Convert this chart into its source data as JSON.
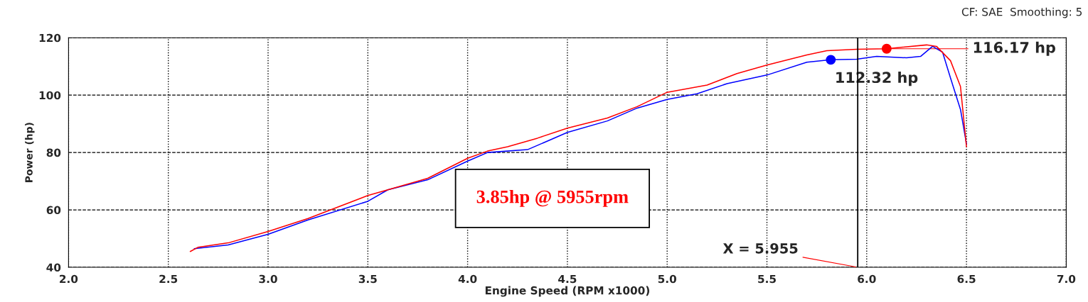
{
  "chart_data": {
    "type": "line",
    "xlabel": "Engine Speed (RPM x1000)",
    "ylabel": "Power (hp)",
    "xlim": [
      2.0,
      7.0
    ],
    "xticks": [
      {
        "value": 2.0,
        "label": "2.0"
      },
      {
        "value": 2.5,
        "label": "2.5"
      },
      {
        "value": 3.0,
        "label": "3.0"
      },
      {
        "value": 3.5,
        "label": "3.5"
      },
      {
        "value": 4.0,
        "label": "4.0"
      },
      {
        "value": 4.5,
        "label": "4.5"
      },
      {
        "value": 5.0,
        "label": "5.0"
      },
      {
        "value": 5.5,
        "label": "5.5"
      },
      {
        "value": 6.0,
        "label": "6.0"
      },
      {
        "value": 6.5,
        "label": "6.5"
      },
      {
        "value": 7.0,
        "label": "7.0"
      }
    ],
    "ylim": [
      40,
      120
    ],
    "yticks": [
      40,
      60,
      80,
      100,
      120
    ],
    "grid": true,
    "line_style": "solid",
    "series": [
      {
        "color": "#0000ff",
        "x": [
          2.63,
          2.8,
          3.0,
          3.2,
          3.5,
          3.6,
          3.8,
          4.0,
          4.1,
          4.3,
          4.4,
          4.5,
          4.7,
          4.85,
          5.0,
          5.15,
          5.3,
          5.5,
          5.7,
          5.82,
          5.95,
          6.05,
          6.2,
          6.27,
          6.33,
          6.38,
          6.42,
          6.47,
          6.5
        ],
        "values": [
          46.5,
          47.8,
          51.5,
          56.5,
          63,
          67,
          70.5,
          77,
          80,
          81,
          84,
          87,
          91,
          95.5,
          98.5,
          100.5,
          104,
          107,
          111.5,
          112.32,
          112.5,
          113.5,
          113,
          113.5,
          117,
          115,
          106,
          95,
          83
        ]
      },
      {
        "color": "#ff0000",
        "x": [
          2.61,
          2.65,
          2.8,
          3.0,
          3.2,
          3.5,
          3.6,
          3.8,
          4.0,
          4.1,
          4.2,
          4.35,
          4.5,
          4.7,
          4.85,
          5.0,
          5.2,
          5.35,
          5.5,
          5.7,
          5.8,
          5.95,
          6.1,
          6.3,
          6.35,
          6.42,
          6.47,
          6.5
        ],
        "values": [
          45.5,
          47,
          48.5,
          52.5,
          57,
          65,
          67,
          71,
          78,
          80.5,
          82,
          85,
          88.5,
          92,
          96,
          101,
          103.5,
          107.5,
          110.5,
          114,
          115.5,
          116,
          116.17,
          117.5,
          117,
          112,
          103,
          82
        ]
      }
    ],
    "ref_lines": [
      {
        "axis": "x",
        "value": 5.955,
        "label": "X = 5.955",
        "color": "#000000",
        "line_style": "solid"
      }
    ],
    "annotations": [
      {
        "text": "112.32 hp",
        "x": 5.82,
        "y": 112.32
      },
      {
        "text": "116.17 hp",
        "x": 6.1,
        "y": 116.17
      },
      "3.85hp @ 5955rpm",
      "CF: SAE  Smoothing: 5"
    ]
  }
}
